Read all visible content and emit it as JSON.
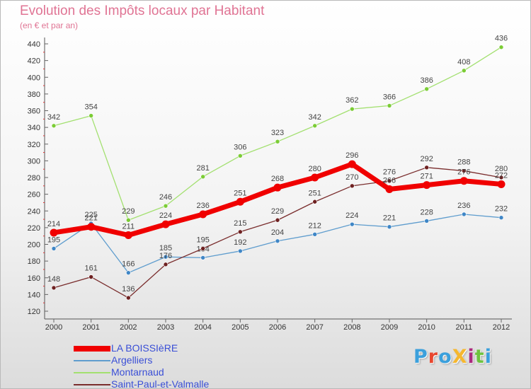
{
  "header": {
    "title": "Evolution des Impôts locaux par Habitant",
    "subtitle": "(en € et par an)"
  },
  "logo": {
    "text": "ProXiti",
    "colors": [
      "#3ba0dc",
      "#e8472f",
      "#3ba0dc",
      "#f5b72f",
      "#ab2a7e",
      "#6ec33f",
      "#3ba0dc"
    ]
  },
  "chart_data": {
    "type": "line",
    "x": [
      2000,
      2001,
      2002,
      2003,
      2004,
      2005,
      2006,
      2007,
      2008,
      2009,
      2010,
      2011,
      2012
    ],
    "ylim": [
      120,
      440
    ],
    "yticks": [
      120,
      140,
      160,
      180,
      200,
      220,
      240,
      260,
      280,
      300,
      320,
      340,
      360,
      380,
      400,
      420,
      440
    ],
    "grid": false,
    "legend": "bottom-left",
    "series": [
      {
        "name": "Argelliers",
        "color": "#5f9dce",
        "marker": "#3f86c6",
        "width": 1.3,
        "values": [
          195,
          225,
          166,
          185,
          184,
          192,
          204,
          212,
          224,
          221,
          228,
          236,
          232
        ]
      },
      {
        "name": "Montarnaud",
        "color": "#a3e070",
        "marker": "#7bcc35",
        "width": 1.3,
        "values": [
          342,
          354,
          229,
          246,
          281,
          306,
          323,
          342,
          362,
          366,
          386,
          408,
          436
        ]
      },
      {
        "name": "Saint-Paul-et-Valmalle",
        "color": "#7a2d2d",
        "marker": "#6e2121",
        "width": 1.3,
        "values": [
          148,
          161,
          136,
          176,
          195,
          215,
          229,
          251,
          270,
          276,
          292,
          288,
          280
        ]
      },
      {
        "name": "LA BOISSIèRE",
        "color": "#f00000",
        "marker": "#f00000",
        "width": 7,
        "values": [
          214,
          221,
          211,
          224,
          236,
          251,
          268,
          280,
          296,
          266,
          271,
          276,
          272
        ]
      }
    ],
    "legend_order": [
      "LA BOISSIèRE",
      "Argelliers",
      "Montarnaud",
      "Saint-Paul-et-Valmalle"
    ]
  }
}
